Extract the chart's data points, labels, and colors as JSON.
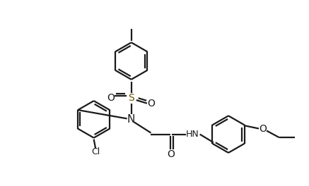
{
  "background_color": "#ffffff",
  "line_color": "#1a1a1a",
  "line_width": 1.6,
  "figsize": [
    4.37,
    2.64
  ],
  "dpi": 100,
  "s_color": "#6b5000",
  "xlim": [
    0,
    8.5
  ],
  "ylim": [
    0,
    5.2
  ]
}
